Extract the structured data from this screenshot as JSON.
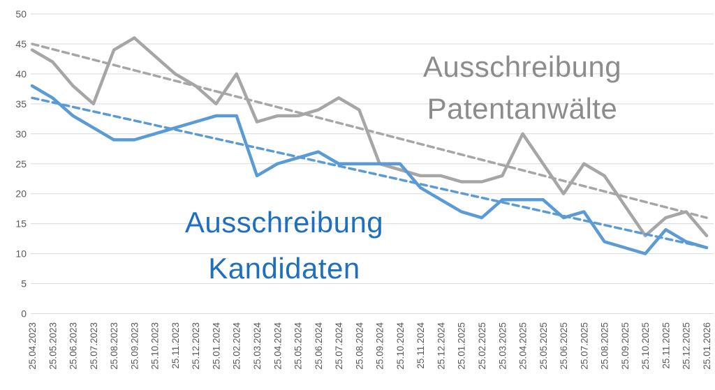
{
  "chart_data": {
    "type": "line",
    "categories": [
      "25.04.2023",
      "25.05.2023",
      "25.06.2023",
      "25.07.2023",
      "25.08.2023",
      "25.09.2023",
      "25.10.2023",
      "25.11.2023",
      "25.12.2023",
      "25.01.2024",
      "25.02.2024",
      "25.03.2024",
      "25.04.2024",
      "25.05.2024",
      "25.06.2024",
      "25.07.2024",
      "25.08.2024",
      "25.09.2024",
      "25.10.2024",
      "25.11.2024",
      "25.12.2024",
      "25.01.2025",
      "25.02.2025",
      "25.03.2025",
      "25.04.2025",
      "25.05.2025",
      "25.06.2025",
      "25.07.2025",
      "25.08.2025",
      "25.09.2025",
      "25.10.2025",
      "25.11.2025",
      "25.12.2025",
      "25.01.2026"
    ],
    "series": [
      {
        "name": "Ausschreibung Patentanwälte",
        "color": "#A6A6A6",
        "values": [
          44,
          42,
          38,
          35,
          44,
          46,
          43,
          40,
          38,
          35,
          40,
          32,
          33,
          33,
          34,
          36,
          34,
          25,
          24,
          23,
          23,
          22,
          22,
          23,
          30,
          25,
          20,
          25,
          23,
          18,
          13,
          16,
          17,
          13
        ],
        "trendline": {
          "start": 45,
          "end": 16,
          "style": "dashed"
        }
      },
      {
        "name": "Ausschreibung Kandidaten",
        "color": "#5B9BD5",
        "values": [
          38,
          36,
          33,
          31,
          29,
          29,
          30,
          31,
          32,
          33,
          33,
          23,
          25,
          26,
          27,
          25,
          25,
          25,
          25,
          21,
          19,
          17,
          16,
          19,
          19,
          19,
          16,
          17,
          12,
          11,
          10,
          14,
          12,
          11
        ],
        "trendline": {
          "start": 36,
          "end": 11,
          "style": "dashed"
        }
      }
    ],
    "title": "",
    "xlabel": "",
    "ylabel": "",
    "ylim": [
      0,
      50
    ],
    "ytick_step": 5,
    "yticks": [
      0,
      5,
      10,
      15,
      20,
      25,
      30,
      35,
      40,
      45,
      50
    ],
    "grid": true,
    "legend_position": "floating-annotations"
  },
  "annotations": {
    "patentanwaelte": {
      "line1": "Ausschreibung",
      "line2": "Patentanwälte",
      "color": "#8C8C8C"
    },
    "kandidaten": {
      "line1": "Ausschreibung",
      "line2": "Kandidaten",
      "color": "#1F6FC0"
    }
  },
  "axis_style": {
    "tick_label_color": "#595959",
    "grid_color": "#D9D9D9"
  }
}
